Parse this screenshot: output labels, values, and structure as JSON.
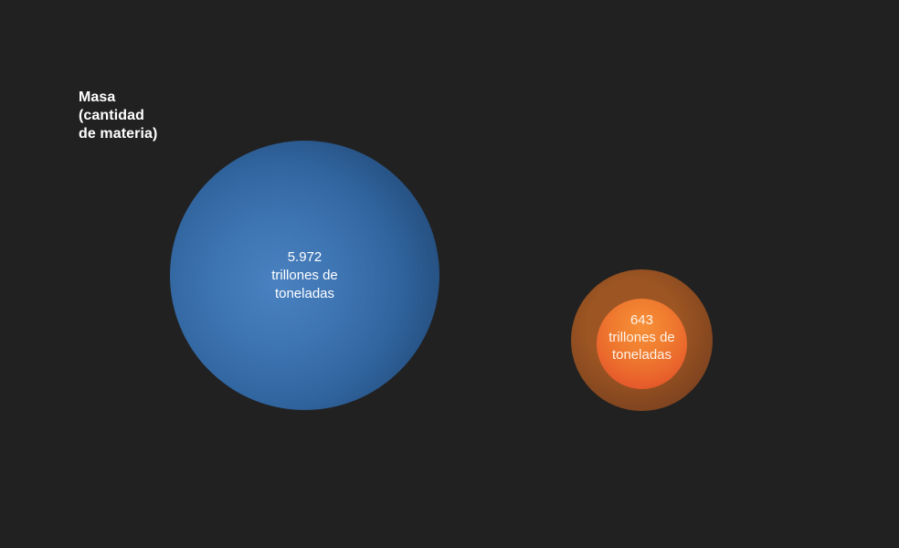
{
  "title": {
    "line1": "Masa",
    "line2": "(cantidad",
    "line3": "de materia)"
  },
  "bubbles": {
    "large": {
      "value": "5.972",
      "unit_line1": "trillones de",
      "unit_line2": "toneladas",
      "color": "#3b72b1"
    },
    "small": {
      "value": "643",
      "unit_line1": "trillones de",
      "unit_line2": "toneladas",
      "color": "#ee6a2a",
      "halo_color": "#7a4120"
    }
  },
  "colors": {
    "background": "#212121",
    "title_text": "#ffffff",
    "large_bubble_highlight": "#4a81c0",
    "large_bubble_edge": "#1d4066",
    "small_bubble_highlight": "#f79038",
    "small_bubble_edge": "#d94c27",
    "small_bubble_halo": "#6b3a1f",
    "label_text_large": "#ffffff",
    "label_text_small": "#fdf3e8"
  },
  "chart_data": {
    "type": "bubble",
    "title": "Masa (cantidad de materia)",
    "series": [
      {
        "label": "5.972 trillones de toneladas",
        "value": 5972,
        "unit": "trillones de toneladas",
        "color": "#3b72b1",
        "bubble_radius_px": 147
      },
      {
        "label": "643 trillones de toneladas",
        "value": 643,
        "unit": "trillones de toneladas",
        "color": "#ee6a2a",
        "bubble_radius_px": 49,
        "halo_radius_px": 77
      }
    ],
    "area_proportional": true,
    "legend_position": "none",
    "grid": false,
    "background": "#212121"
  }
}
